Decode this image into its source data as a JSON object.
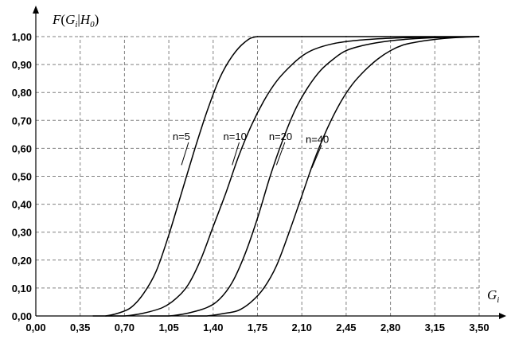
{
  "chart_data": {
    "type": "line",
    "title": "",
    "ylabel": {
      "main": "F",
      "open": "(",
      "g": "G",
      "g_sub": "i",
      "bar": "|",
      "h": "H",
      "h_sub": "0",
      "close": ")"
    },
    "xlabel": {
      "main": "G",
      "sub": "i"
    },
    "xlim": [
      0,
      3.5
    ],
    "ylim": [
      0,
      1
    ],
    "x_ticks": [
      0,
      0.35,
      0.7,
      1.05,
      1.4,
      1.75,
      2.1,
      2.45,
      2.8,
      3.15,
      3.5
    ],
    "x_tick_labels": [
      "0,00",
      "0,35",
      "0,70",
      "1,05",
      "1,40",
      "1,75",
      "2,10",
      "2,45",
      "2,80",
      "3,15",
      "3,50"
    ],
    "y_ticks": [
      0,
      0.1,
      0.2,
      0.3,
      0.4,
      0.5,
      0.6,
      0.7,
      0.8,
      0.9,
      1.0
    ],
    "y_tick_labels": [
      "0,00",
      "0,10",
      "0,20",
      "0,30",
      "0,40",
      "0,50",
      "0,60",
      "0,70",
      "0,80",
      "0,90",
      "1,00"
    ],
    "grid": true,
    "colors": {
      "line": "#000000",
      "grid": "#808080"
    },
    "series": [
      {
        "name": "n=5",
        "x": [
          0.45,
          0.55,
          0.65,
          0.75,
          0.85,
          0.95,
          1.05,
          1.15,
          1.25,
          1.35,
          1.45,
          1.55,
          1.65,
          1.75,
          2.0,
          2.5,
          3.0,
          3.5
        ],
        "y": [
          0.0,
          0.0,
          0.01,
          0.03,
          0.08,
          0.16,
          0.29,
          0.44,
          0.59,
          0.73,
          0.85,
          0.93,
          0.98,
          1.0,
          1.0,
          1.0,
          1.0,
          1.0
        ]
      },
      {
        "name": "n=10",
        "x": [
          0.55,
          0.7,
          0.85,
          1.0,
          1.1,
          1.2,
          1.3,
          1.4,
          1.5,
          1.6,
          1.7,
          1.8,
          1.9,
          2.0,
          2.1,
          2.2,
          2.35,
          2.5,
          2.7,
          2.9,
          3.1,
          3.3,
          3.5
        ],
        "y": [
          0.0,
          0.0,
          0.01,
          0.03,
          0.06,
          0.11,
          0.2,
          0.32,
          0.44,
          0.57,
          0.68,
          0.77,
          0.84,
          0.89,
          0.93,
          0.955,
          0.975,
          0.985,
          0.992,
          0.996,
          0.998,
          0.999,
          1.0
        ]
      },
      {
        "name": "n=20",
        "x": [
          0.9,
          1.05,
          1.2,
          1.35,
          1.45,
          1.55,
          1.65,
          1.75,
          1.85,
          1.95,
          2.05,
          2.15,
          2.25,
          2.35,
          2.45,
          2.6,
          2.8,
          3.0,
          3.2,
          3.5
        ],
        "y": [
          0.0,
          0.0,
          0.01,
          0.03,
          0.06,
          0.12,
          0.22,
          0.35,
          0.5,
          0.63,
          0.74,
          0.82,
          0.88,
          0.92,
          0.95,
          0.97,
          0.985,
          0.993,
          0.997,
          1.0
        ]
      },
      {
        "name": "n=40",
        "x": [
          1.2,
          1.35,
          1.5,
          1.6,
          1.7,
          1.8,
          1.9,
          2.0,
          2.1,
          2.2,
          2.3,
          2.4,
          2.5,
          2.6,
          2.7,
          2.8,
          2.9,
          3.0,
          3.15,
          3.3,
          3.5
        ],
        "y": [
          0.0,
          0.0,
          0.01,
          0.02,
          0.05,
          0.1,
          0.18,
          0.3,
          0.43,
          0.56,
          0.67,
          0.76,
          0.83,
          0.88,
          0.92,
          0.95,
          0.97,
          0.98,
          0.99,
          0.996,
          1.0
        ]
      }
    ],
    "series_labels": [
      {
        "text": "n=5",
        "x": 1.08,
        "y": 0.63,
        "pointer_x": 1.15,
        "pointer_y": 0.54
      },
      {
        "text": "n=10",
        "x": 1.48,
        "y": 0.63,
        "pointer_x": 1.55,
        "pointer_y": 0.54
      },
      {
        "text": "n=20",
        "x": 1.84,
        "y": 0.63,
        "pointer_x": 1.9,
        "pointer_y": 0.54
      },
      {
        "text": "n=40",
        "x": 2.13,
        "y": 0.62,
        "pointer_x": 2.18,
        "pointer_y": 0.53
      }
    ]
  }
}
